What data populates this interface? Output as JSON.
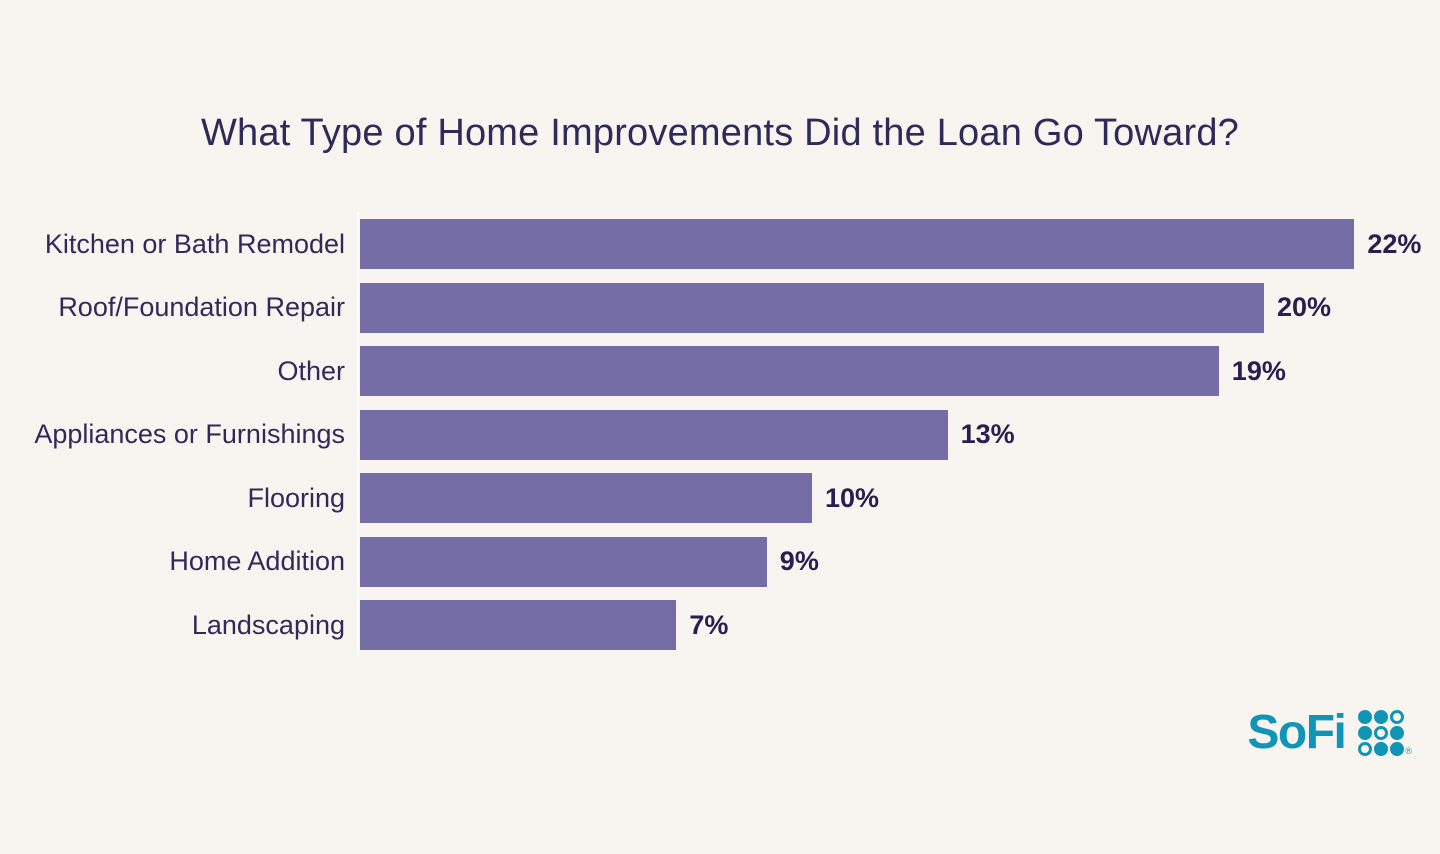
{
  "page": {
    "background_color": "#f8f5f0"
  },
  "title": "What Type of Home Improvements Did the Loan Go Toward?",
  "chart_data": {
    "type": "bar",
    "orientation": "horizontal",
    "title": "What Type of Home Improvements Did the Loan Go Toward?",
    "categories": [
      "Kitchen or Bath Remodel",
      "Roof/Foundation Repair",
      "Other",
      "Appliances or Furnishings",
      "Flooring",
      "Home Addition",
      "Landscaping"
    ],
    "values": [
      22,
      20,
      19,
      13,
      10,
      9,
      7
    ],
    "value_labels": [
      "22%",
      "20%",
      "19%",
      "13%",
      "10%",
      "9%",
      "7%"
    ],
    "value_suffix": "%",
    "xlabel": "",
    "ylabel": "",
    "xlim": [
      0,
      24
    ],
    "grid": false,
    "legend": false,
    "data_labels_position": "end-of-bar",
    "bar_color": "#756ea6",
    "label_color": "#2f2a58",
    "value_color": "#262051",
    "axis_line_color": "#ffffff"
  },
  "logo": {
    "text": "SoFi",
    "registered_mark": "®",
    "color": "#1095b7",
    "mark": "3x3-dot-grid",
    "mark_dots": [
      [
        "filled",
        "filled",
        "hollow"
      ],
      [
        "filled",
        "hollow",
        "filled"
      ],
      [
        "hollow",
        "filled",
        "filled"
      ]
    ]
  }
}
